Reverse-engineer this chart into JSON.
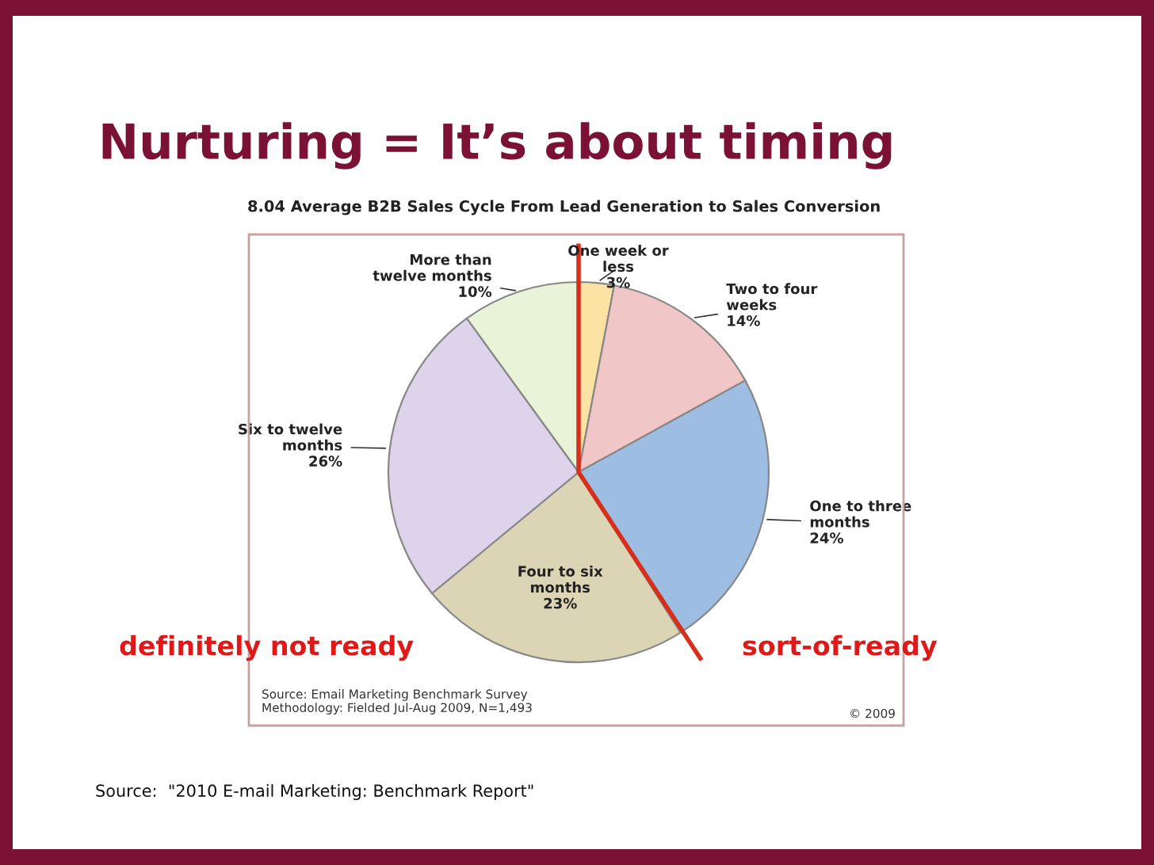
{
  "chart_data": {
    "type": "pie",
    "title": "Nurturing = It’s about timing",
    "subtitle": "8.04 Average B2B Sales Cycle From Lead Generation to Sales Conversion",
    "categories": [
      "One week or\nless",
      "Two to four\nweeks",
      "One to three\nmonths",
      "Four to six\nmonths",
      "Six to twelve\nmonths",
      "More than\ntwelve months"
    ],
    "values": [
      3,
      14,
      24,
      23,
      26,
      10
    ],
    "colors": [
      "#fce3a4",
      "#f0c6c6",
      "#9dbde3",
      "#dcd5b5",
      "#ddd3ea",
      "#e8f3d8"
    ],
    "value_labels": [
      "3%",
      "14%",
      "24%",
      "23%",
      "26%",
      "10%"
    ],
    "annotations": [
      "definitely not ready",
      "sort-of-ready",
      "Source: Email Marketing Benchmark Survey\nMethodology: Fielded Jul-Aug 2009, N=1,493",
      "© 2009",
      "Source:  \"2010 E-mail Marketing: Benchmark Report\""
    ]
  }
}
